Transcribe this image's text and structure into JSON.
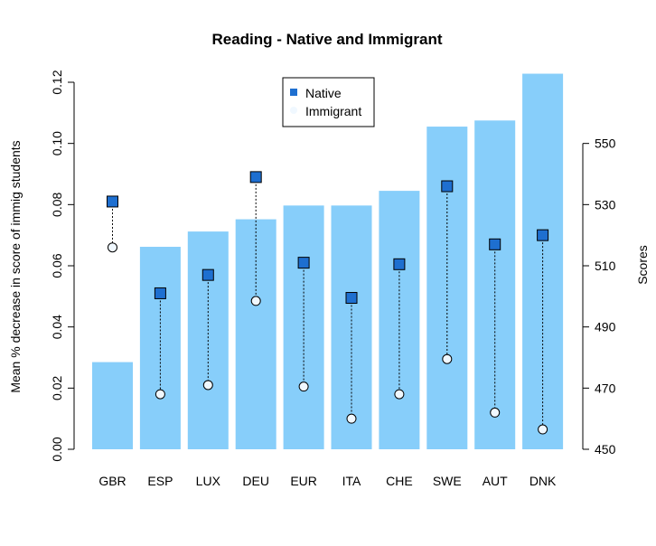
{
  "chart_data": {
    "type": "bar",
    "title": "Reading - Native and Immigrant",
    "categories": [
      "GBR",
      "ESP",
      "LUX",
      "DEU",
      "EUR",
      "ITA",
      "CHE",
      "SWE",
      "AUT",
      "DNK"
    ],
    "bar_series": {
      "name": "Mean % decrease in score of immig students",
      "values": [
        0.0285,
        0.0662,
        0.0712,
        0.0752,
        0.0797,
        0.0797,
        0.0845,
        0.1055,
        0.1075,
        0.1228
      ],
      "color": "#87CEFA"
    },
    "left_axis": {
      "label": "Mean % decrease in score of immig students",
      "ylim": [
        0,
        0.12
      ],
      "ticks": [
        "0.00",
        "0.02",
        "0.04",
        "0.06",
        "0.08",
        "0.10",
        "0.12"
      ]
    },
    "right_axis": {
      "label": "Scores",
      "ylim": [
        450,
        570
      ],
      "ticks": [
        "450",
        "470",
        "490",
        "510",
        "530",
        "550"
      ]
    },
    "native_series": {
      "name": "Native",
      "values": [
        531,
        501,
        507,
        539,
        511,
        499.5,
        510.5,
        536,
        517,
        520
      ],
      "color": "#1E6FD0"
    },
    "immigrant_series": {
      "name": "Immigrant",
      "values": [
        516,
        468,
        471,
        498.5,
        470.5,
        460,
        468,
        479.5,
        462,
        456.5
      ],
      "color": "#F0F8FF"
    },
    "legend": {
      "position": "top-center",
      "items": [
        {
          "label": "Native",
          "color": "#1E6FD0",
          "marker": "square"
        },
        {
          "label": "Immigrant",
          "color": "#F0F8FF",
          "marker": "circle"
        }
      ]
    }
  }
}
